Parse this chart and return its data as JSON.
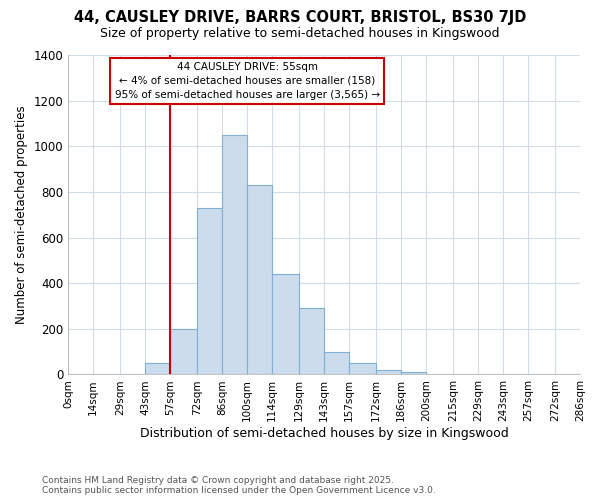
{
  "title1": "44, CAUSLEY DRIVE, BARRS COURT, BRISTOL, BS30 7JD",
  "title2": "Size of property relative to semi-detached houses in Kingswood",
  "xlabel": "Distribution of semi-detached houses by size in Kingswood",
  "ylabel": "Number of semi-detached properties",
  "bin_edges": [
    0,
    14,
    29,
    43,
    57,
    72,
    86,
    100,
    114,
    129,
    143,
    157,
    172,
    186,
    200,
    215,
    229,
    243,
    257,
    272,
    286
  ],
  "bar_heights": [
    0,
    0,
    0,
    50,
    200,
    730,
    1050,
    830,
    440,
    290,
    100,
    50,
    20,
    10,
    0,
    0,
    0,
    0,
    0,
    0
  ],
  "bar_color": "#ccdcec",
  "bar_edge_color": "#7db0d4",
  "property_line_x": 57,
  "property_line_color": "#cc0000",
  "annotation_title": "44 CAUSLEY DRIVE: 55sqm",
  "annotation_line1": "← 4% of semi-detached houses are smaller (158)",
  "annotation_line2": "95% of semi-detached houses are larger (3,565) →",
  "annotation_box_color": "#cc0000",
  "ylim": [
    0,
    1400
  ],
  "yticks": [
    0,
    200,
    400,
    600,
    800,
    1000,
    1200,
    1400
  ],
  "tick_labels": [
    "0sqm",
    "14sqm",
    "29sqm",
    "43sqm",
    "57sqm",
    "72sqm",
    "86sqm",
    "100sqm",
    "114sqm",
    "129sqm",
    "143sqm",
    "157sqm",
    "172sqm",
    "186sqm",
    "200sqm",
    "215sqm",
    "229sqm",
    "243sqm",
    "257sqm",
    "272sqm",
    "286sqm"
  ],
  "footnote": "Contains HM Land Registry data © Crown copyright and database right 2025.\nContains public sector information licensed under the Open Government Licence v3.0.",
  "bg_color": "#ffffff",
  "plot_bg_color": "#ffffff",
  "grid_color": "#d0dce8"
}
